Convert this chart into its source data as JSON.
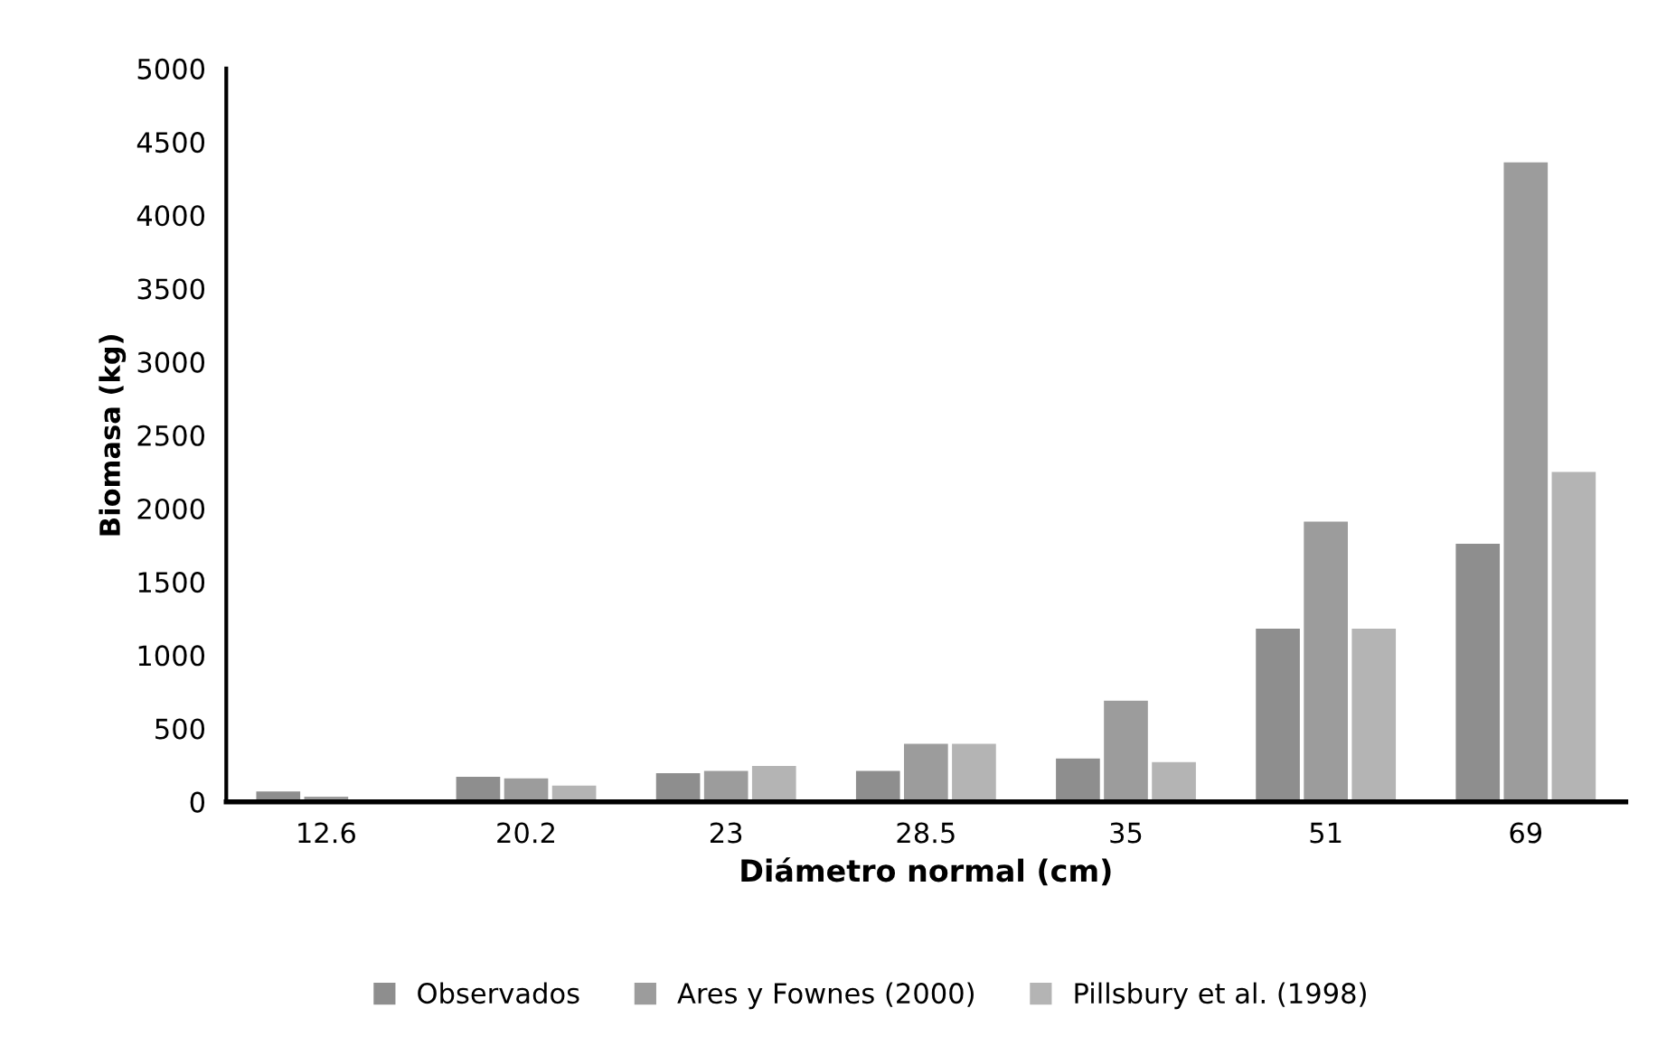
{
  "chart_data": {
    "type": "bar",
    "xlabel": "Diámetro normal (cm)",
    "ylabel": "Biomasa (kg)",
    "categories": [
      "12.6",
      "20.2",
      "23",
      "28.5",
      "35",
      "51",
      "69"
    ],
    "series": [
      {
        "name": "Observados",
        "color": "#8e8e8e",
        "values": [
          70,
          170,
          195,
          210,
          295,
          1180,
          1760
        ]
      },
      {
        "name": "Ares y Fownes (2000)",
        "color": "#9c9c9c",
        "values": [
          35,
          160,
          210,
          395,
          690,
          1910,
          4360
        ]
      },
      {
        "name": "Pillsbury et al. (1998)",
        "color": "#b4b4b4",
        "values": [
          null,
          110,
          245,
          395,
          270,
          1180,
          2250
        ]
      }
    ],
    "ylim": [
      0,
      5000
    ],
    "yticks": [
      0,
      500,
      1000,
      1500,
      2000,
      2500,
      3000,
      3500,
      4000,
      4500,
      5000
    ],
    "grid": false,
    "legend": "bottom"
  }
}
